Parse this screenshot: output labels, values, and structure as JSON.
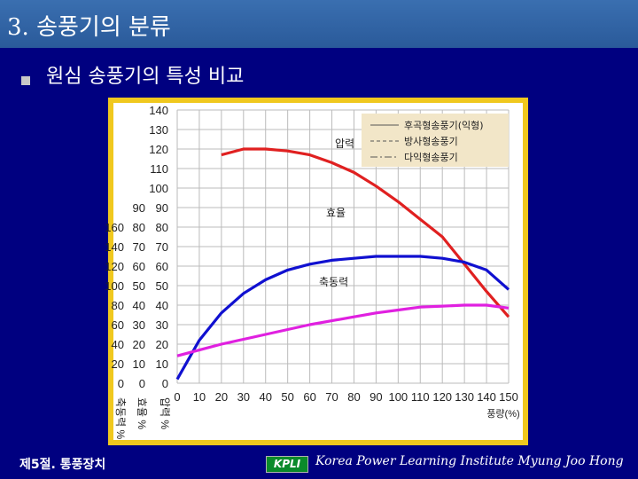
{
  "slide": {
    "title": "3. 송풍기의 분류",
    "heading": "원심 송풍기의 특성 비교",
    "footer_left": "제5절. 통풍장치",
    "logo_text": "KPLI",
    "footer_right": "Korea Power Learning Institute Myung Joo Hong"
  },
  "chart_data": {
    "type": "line",
    "x": [
      0,
      10,
      20,
      30,
      40,
      50,
      60,
      70,
      80,
      90,
      100,
      110,
      120,
      130,
      140,
      150
    ],
    "xlabel": "풍량(%)",
    "xlim": [
      0,
      150
    ],
    "y_axes": [
      {
        "label": "압력 %",
        "ticks": [
          0,
          10,
          20,
          30,
          40,
          50,
          60,
          70,
          80,
          90,
          100,
          110,
          120,
          130,
          140
        ],
        "range": [
          0,
          140
        ]
      },
      {
        "label": "효율 %",
        "ticks": [
          0,
          10,
          20,
          30,
          40,
          50,
          60,
          70,
          80,
          90
        ],
        "range": [
          0,
          90
        ]
      },
      {
        "label": "축동력 %",
        "ticks": [
          0,
          20,
          40,
          60,
          80,
          100,
          120,
          140,
          160
        ],
        "range": [
          0,
          160
        ]
      }
    ],
    "legend_title": "",
    "legend": [
      {
        "label": "후곡형송풍기(익형)",
        "style": "solid"
      },
      {
        "label": "방사형송풍기",
        "style": "dashed"
      },
      {
        "label": "다익형송풍기",
        "style": "dashdot"
      }
    ],
    "annotations": [
      "압력",
      "효율",
      "축동력"
    ],
    "series": [
      {
        "name": "압력",
        "color": "#e02020",
        "axis": 0,
        "values": [
          null,
          null,
          117,
          120,
          120,
          119,
          117,
          113,
          108,
          101,
          93,
          84,
          75,
          61,
          47,
          34
        ]
      },
      {
        "name": "효율",
        "color": "#1010d0",
        "axis": 1,
        "values": [
          2,
          22,
          36,
          46,
          53,
          58,
          61,
          63,
          64,
          65,
          65,
          65,
          64,
          62,
          58,
          48
        ]
      },
      {
        "name": "축동력",
        "color": "#e020e0",
        "axis": 2,
        "values": [
          28,
          34,
          40,
          45,
          50,
          55,
          60,
          64,
          68,
          72,
          75,
          78,
          79,
          80,
          80,
          77
        ]
      }
    ],
    "grid": true
  }
}
